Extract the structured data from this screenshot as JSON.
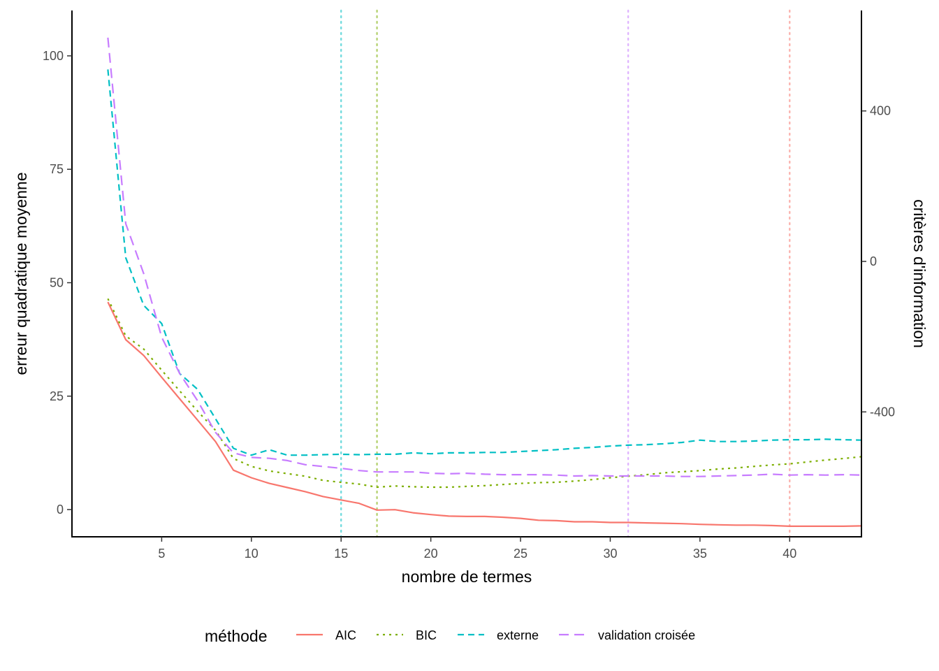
{
  "chart_data": {
    "type": "line",
    "xlabel": "nombre de termes",
    "ylabel": "erreur quadratique moyenne",
    "y2label": "critères d'information",
    "xlim": [
      0,
      44
    ],
    "ylim": [
      -6,
      110
    ],
    "y2lim": [
      -732,
      667
    ],
    "x_ticks": [
      5,
      10,
      15,
      20,
      25,
      30,
      35,
      40
    ],
    "y_ticks": [
      0,
      25,
      50,
      75,
      100
    ],
    "y2_ticks": [
      -400,
      0,
      400
    ],
    "legend": {
      "title": "méthode",
      "position": "bottom",
      "entries": [
        "AIC",
        "BIC",
        "externe",
        "validation croisée"
      ]
    },
    "vlines": [
      {
        "x": 15,
        "series": "externe"
      },
      {
        "x": 17,
        "series": "BIC"
      },
      {
        "x": 31,
        "series": "validation croisée"
      },
      {
        "x": 40,
        "series": "AIC"
      }
    ],
    "x": [
      2,
      3,
      4,
      5,
      6,
      7,
      8,
      9,
      10,
      11,
      12,
      13,
      14,
      15,
      16,
      17,
      18,
      19,
      20,
      21,
      22,
      23,
      24,
      25,
      26,
      27,
      28,
      29,
      30,
      31,
      32,
      33,
      34,
      35,
      36,
      37,
      38,
      39,
      40,
      41,
      42,
      43,
      44
    ],
    "series": [
      {
        "name": "AIC",
        "axis": "right",
        "color": "#F8766D",
        "dash": "solid",
        "values": [
          -108,
          -208,
          -250,
          -308,
          -365,
          -422,
          -479,
          -555,
          -575,
          -590,
          -601,
          -612,
          -625,
          -634,
          -643,
          -661,
          -660,
          -668,
          -673,
          -677,
          -678,
          -678,
          -680,
          -683,
          -688,
          -689,
          -692,
          -692,
          -694,
          -694,
          -695,
          -696,
          -697,
          -699,
          -700,
          -701,
          -701,
          -702,
          -704,
          -704,
          -704,
          -704,
          -703
        ]
      },
      {
        "name": "BIC",
        "axis": "right",
        "color": "#7CAE00",
        "dash": "dotted",
        "values": [
          -99,
          -198,
          -233,
          -289,
          -344,
          -398,
          -449,
          -524,
          -545,
          -557,
          -564,
          -571,
          -582,
          -587,
          -592,
          -600,
          -597,
          -599,
          -600,
          -600,
          -598,
          -596,
          -593,
          -590,
          -588,
          -587,
          -584,
          -580,
          -575,
          -571,
          -567,
          -562,
          -559,
          -556,
          -552,
          -549,
          -545,
          -541,
          -538,
          -533,
          -528,
          -524,
          -519
        ]
      },
      {
        "name": "externe",
        "axis": "left",
        "color": "#00BFC4",
        "dash": "dashed",
        "values": [
          97,
          55.5,
          45,
          41,
          30,
          26.5,
          20,
          13.5,
          12,
          13.2,
          12,
          12,
          12.1,
          12.2,
          12.1,
          12.2,
          12.2,
          12.5,
          12.3,
          12.5,
          12.5,
          12.6,
          12.6,
          12.8,
          13,
          13.2,
          13.5,
          13.7,
          14,
          14.2,
          14.3,
          14.5,
          14.8,
          15.3,
          15,
          15,
          15.1,
          15.3,
          15.4,
          15.4,
          15.5,
          15.4,
          15.3
        ]
      },
      {
        "name": "validation croisée",
        "axis": "left",
        "color": "#C77CFF",
        "dash": "longdash",
        "values": [
          104,
          63,
          52,
          38,
          30,
          24,
          17,
          12.5,
          11.5,
          11.3,
          10.8,
          9.9,
          9.5,
          9.1,
          8.6,
          8.3,
          8.3,
          8.3,
          8,
          7.9,
          8,
          7.8,
          7.7,
          7.7,
          7.7,
          7.6,
          7.4,
          7.5,
          7.4,
          7.4,
          7.4,
          7.4,
          7.3,
          7.3,
          7.4,
          7.5,
          7.6,
          7.8,
          7.6,
          7.7,
          7.6,
          7.7,
          7.6
        ]
      }
    ]
  }
}
